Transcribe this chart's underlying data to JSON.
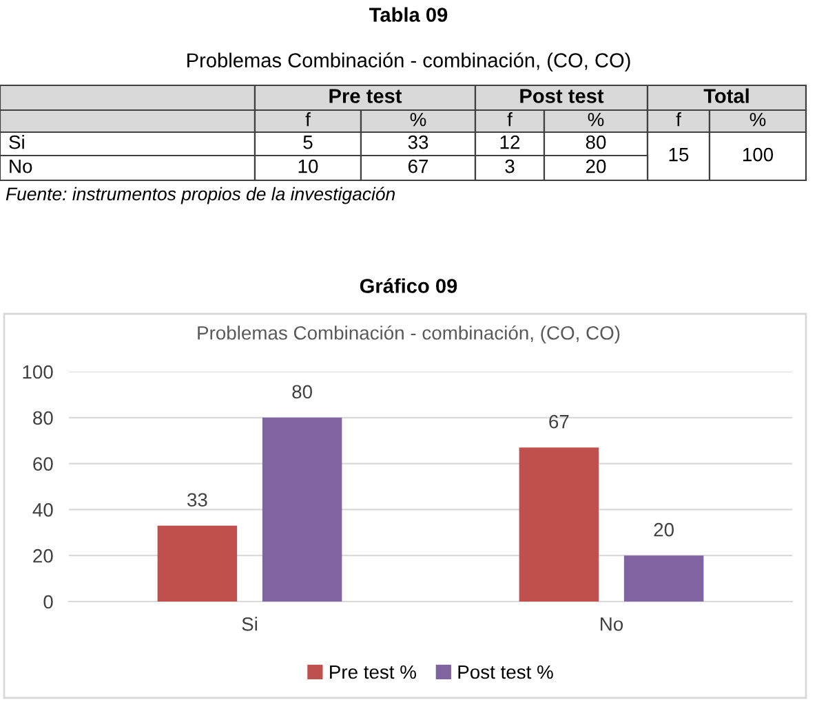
{
  "chart_data": {
    "type": "bar",
    "title": "Gráfico 09",
    "subtitle": "Problemas Combinación - combinación, (CO, CO)",
    "categories": [
      "Si",
      "No"
    ],
    "series": [
      {
        "name": "Pre test %",
        "color": "#c0504d",
        "values": [
          33,
          67
        ]
      },
      {
        "name": "Post test %",
        "color": "#8064a2",
        "values": [
          80,
          20
        ]
      }
    ],
    "ylim": [
      0,
      100
    ],
    "yticks": [
      0,
      20,
      40,
      60,
      80,
      100
    ],
    "grid": "y",
    "legend": "bottom",
    "data_labels": true,
    "annotations": [
      "Tabla 09",
      "Problemas Combinación - combinación, (CO, CO)",
      "Pre test",
      "Post test",
      "Total",
      "f",
      "%",
      "f",
      "%",
      "f",
      "%",
      "Si",
      "5",
      "33",
      "12",
      "80",
      "15",
      "100",
      "No",
      "10",
      "67",
      "3",
      "20",
      "Fuente: instrumentos propios de la investigación"
    ]
  }
}
